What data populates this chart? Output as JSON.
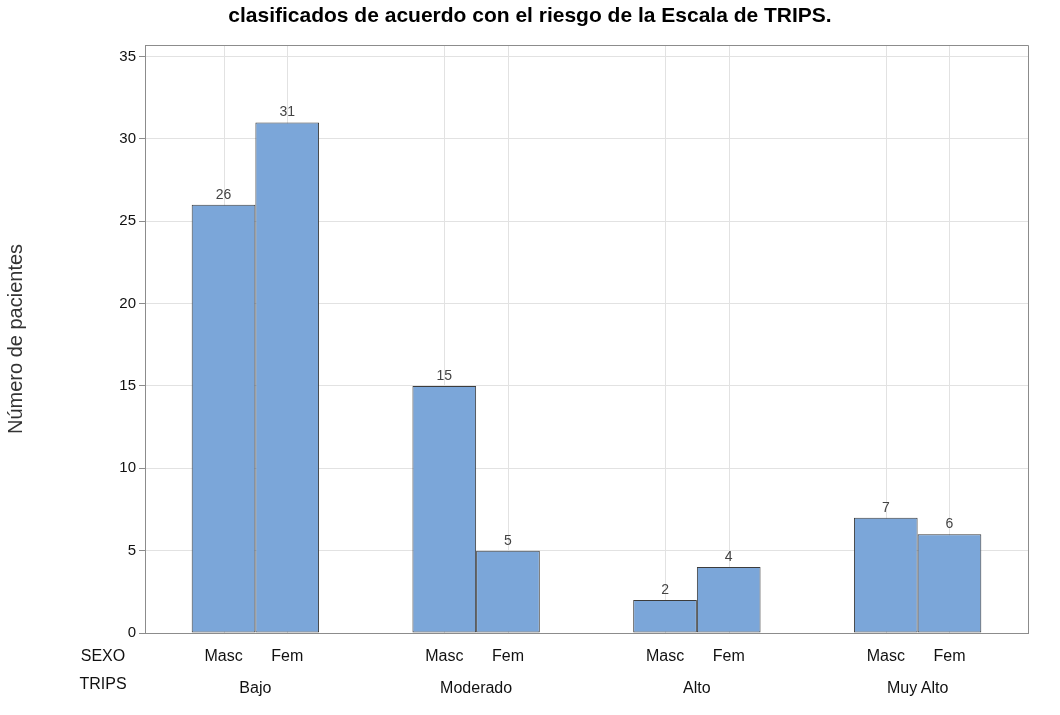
{
  "chart_data": {
    "type": "bar",
    "title": "clasificados de acuerdo con el riesgo de la Escala de TRIPS.",
    "ylabel": "Número de pacientes",
    "xlabel": "TRIPS",
    "legend_title": "SEXO",
    "categories": [
      "Bajo",
      "Moderado",
      "Alto",
      "Muy Alto"
    ],
    "series": [
      {
        "name": "Masc",
        "color": "#7ba6d9",
        "values": [
          26,
          15,
          2,
          7
        ]
      },
      {
        "name": "Fem",
        "color": "#7ba6d9",
        "values": [
          31,
          5,
          4,
          6
        ]
      }
    ],
    "ylim": [
      0,
      35.7
    ],
    "yticks": [
      0,
      5,
      10,
      15,
      20,
      25,
      30,
      35
    ],
    "grid": true,
    "data_labels": true
  }
}
